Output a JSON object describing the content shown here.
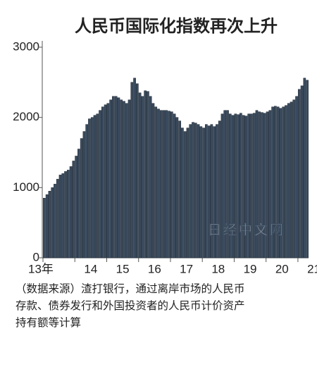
{
  "chart_data": {
    "type": "bar",
    "title": "人民币国际化指数再次上升",
    "watermark": "日经中文网",
    "note_lines": [
      "（数据来源）渣打银行，通过离岸市场的人民币",
      "存款、债券发行和外国投资者的人民币计价资产",
      "持有额等计算"
    ],
    "categories": [
      "13年",
      null,
      null,
      null,
      null,
      null,
      null,
      null,
      null,
      null,
      null,
      null,
      "14",
      null,
      null,
      null,
      null,
      null,
      null,
      null,
      null,
      null,
      null,
      null,
      "15",
      null,
      null,
      null,
      null,
      null,
      null,
      null,
      null,
      null,
      null,
      null,
      "16",
      null,
      null,
      null,
      null,
      null,
      null,
      null,
      null,
      null,
      null,
      null,
      "17",
      null,
      null,
      null,
      null,
      null,
      null,
      null,
      null,
      null,
      null,
      null,
      "18",
      null,
      null,
      null,
      null,
      null,
      null,
      null,
      null,
      null,
      null,
      null,
      "19",
      null,
      null,
      null,
      null,
      null,
      null,
      null,
      null,
      null,
      null,
      null,
      "20",
      null,
      null,
      null,
      null,
      null,
      null,
      null,
      null,
      null,
      null,
      null,
      "21",
      null,
      null,
      null
    ],
    "values": [
      850,
      900,
      950,
      1000,
      1050,
      1120,
      1180,
      1200,
      1230,
      1250,
      1300,
      1380,
      1450,
      1550,
      1700,
      1800,
      1900,
      1980,
      2000,
      2030,
      2050,
      2100,
      2150,
      2180,
      2200,
      2250,
      2300,
      2300,
      2280,
      2250,
      2230,
      2200,
      2250,
      2500,
      2560,
      2480,
      2350,
      2300,
      2380,
      2370,
      2300,
      2200,
      2150,
      2120,
      2100,
      2100,
      2100,
      2090,
      2080,
      2050,
      2000,
      1950,
      1850,
      1800,
      1850,
      1900,
      1930,
      1920,
      1900,
      1870,
      1850,
      1900,
      1880,
      1900,
      1870,
      1900,
      1950,
      2050,
      2100,
      2100,
      2050,
      2030,
      2050,
      2040,
      2060,
      2030,
      2020,
      2050,
      2050,
      2060,
      2100,
      2080,
      2070,
      2060,
      2080,
      2100,
      2150,
      2160,
      2150,
      2130,
      2150,
      2170,
      2200,
      2220,
      2250,
      2300,
      2400,
      2450,
      2560,
      2530
    ],
    "color": "#3b4b5e",
    "ylim": [
      0,
      3000
    ],
    "yticks": [
      0,
      1000,
      2000,
      3000
    ],
    "grid": false
  }
}
